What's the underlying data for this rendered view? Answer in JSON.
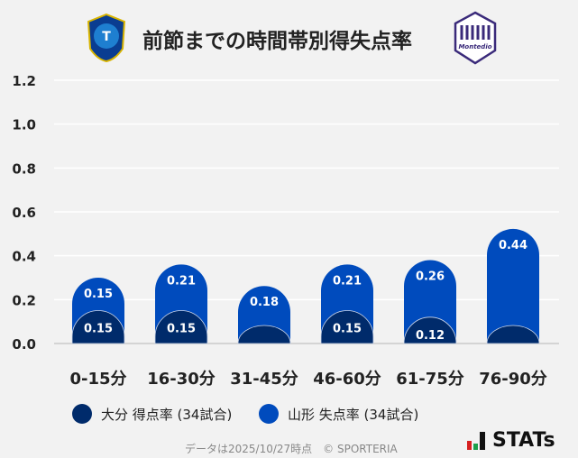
{
  "header": {
    "title": "前節までの時間帯別得失点率",
    "left_logo": "oita-trinita-emblem",
    "right_logo": "montedio-yamagata-emblem"
  },
  "chart_data": {
    "type": "bar",
    "stacked": true,
    "categories": [
      "0-15分",
      "16-30分",
      "31-45分",
      "46-60分",
      "61-75分",
      "76-90分"
    ],
    "series": [
      {
        "name": "大分 得点率 (34試合)",
        "color": "#002b6b",
        "values": [
          0.15,
          0.15,
          0,
          0.15,
          0.12,
          0
        ],
        "labels": [
          "0.15",
          "0.15",
          "",
          "0.15",
          "0.12",
          ""
        ]
      },
      {
        "name": "山形 失点率 (34試合)",
        "color": "#004bbd",
        "values": [
          0.15,
          0.21,
          0.18,
          0.21,
          0.26,
          0.44
        ],
        "labels": [
          "0.15",
          "0.21",
          "0.18",
          "0.21",
          "0.26",
          "0.44"
        ]
      }
    ],
    "ylim": [
      0,
      1.2
    ],
    "yticks": [
      "0.0",
      "0.2",
      "0.4",
      "0.6",
      "0.8",
      "1.0",
      "1.2"
    ],
    "grid": true,
    "legend": "bottom"
  },
  "footer": {
    "note": "データは2025/10/27時点　© SPORTERIA",
    "brand": "STATs"
  }
}
